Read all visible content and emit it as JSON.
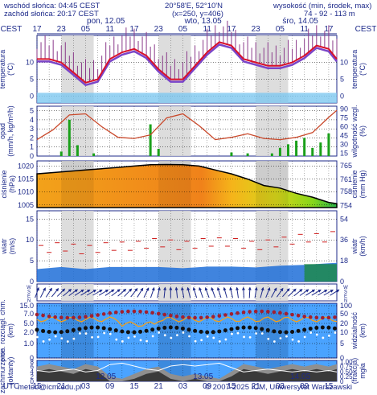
{
  "header": {
    "sunrise": "wschód słońca: 04:45 CEST",
    "sunset": "zachód słońca: 20:17 CEST",
    "coords": "20°58'E, 52°10'N",
    "grid": "(x=250, y=406)",
    "height_title": "wysokość (min, środek, max)",
    "height_values": "74 - 92 - 113 m"
  },
  "footer": {
    "email": "meteo@icm.edu.pl",
    "copyright": "© 2007-2025 ICM, Uniwersytet Warszawski"
  },
  "timeline": {
    "tz_top": "CEST",
    "tz_bottom": "UTC",
    "hours_cest_start": 17,
    "hours_utc_start": 15,
    "day_labels_top": [
      {
        "label": "pon, 12.05",
        "hour": 17
      },
      {
        "label": "wto, 13.05",
        "hour": 41
      },
      {
        "label": "śro, 14.05",
        "hour": 65
      }
    ],
    "day_labels_bottom": [
      {
        "label": "12.05",
        "hour": 17
      },
      {
        "label": "13.05",
        "hour": 41
      },
      {
        "label": "14.05",
        "hour": 65
      }
    ],
    "top_ticks": [
      "17",
      "23",
      "05",
      "11",
      "17",
      "23",
      "05",
      "11",
      "17",
      "23",
      "05",
      "11",
      "17"
    ],
    "bottom_ticks": [
      "15",
      "21",
      "03",
      "09",
      "15",
      "21",
      "03",
      "09",
      "15",
      "21",
      "03",
      "09",
      "15"
    ],
    "total_hours": 74
  },
  "panels": {
    "temp": {
      "left_label": "temperatura\n(°C)",
      "right_label": "temperatura\n(°C)",
      "ticks": [
        "10",
        "5",
        "0"
      ],
      "ticks_right": [
        "10",
        "5",
        "0"
      ],
      "range": [
        -2,
        18
      ]
    },
    "precip": {
      "left_label": "opad\n(mm/h, kg/m²/h)",
      "right_label": "wilgotność wzgl.\n(%)",
      "ticks": [
        "5",
        "4",
        "3",
        "2",
        "1",
        "0"
      ],
      "ticks_right": [
        "90",
        "75",
        "60",
        "45",
        "30",
        "15"
      ]
    },
    "pressure": {
      "left_label": "ciśnienie\n(hPa)",
      "right_label": "ciśnienie\n(mm Hg)",
      "ticks": [
        "1020",
        "1015",
        "1010",
        "1005"
      ],
      "ticks_right": [
        "765",
        "761",
        "758",
        "754"
      ],
      "range": [
        1004,
        1022
      ]
    },
    "wind": {
      "left_label": "wiatr\n(m/s)",
      "right_label": "wiatr\n(km/h)",
      "ticks": [
        "15",
        "10",
        "5",
        "0"
      ],
      "ticks_right": [
        "54",
        "36",
        "18",
        "0"
      ]
    },
    "winddir": {
      "left_label": "W\nS\nE\nN",
      "right_label": "W\nS\nE\nN"
    },
    "visib": {
      "left_label": "pion. rozciągł. chm.\n(km)",
      "right_label": "widzialność\n(km)",
      "ticks": [
        "15.0",
        "7.0",
        "5.0",
        "2.0",
        "1.0",
        "0"
      ],
      "ticks_right": [
        "100",
        "50",
        "20",
        "10",
        "5",
        "0"
      ]
    },
    "cloud": {
      "left_label": "zachmurzenie\n(oktanty)",
      "right_label": "(frakcja)\nmgła",
      "ticks": [
        "8",
        "6",
        "4",
        "2",
        "0"
      ],
      "ticks_right": [
        "1.00",
        "0.75",
        "0.50",
        "0.25",
        "0"
      ]
    }
  },
  "chart_data": {
    "type": "line",
    "x_unit": "hours since Mon 12.05 15 UTC",
    "temperature": {
      "x": [
        0,
        3,
        6,
        9,
        12,
        15,
        18,
        21,
        24,
        27,
        30,
        33,
        36,
        39,
        42,
        45,
        48,
        51,
        54,
        57,
        60,
        63,
        66,
        69,
        72,
        74
      ],
      "values": [
        11,
        11,
        10,
        7,
        4,
        5,
        11,
        13,
        14,
        12,
        8,
        5,
        5,
        9,
        13,
        16,
        15,
        11,
        10,
        9,
        9,
        10,
        12,
        15,
        14,
        11
      ]
    },
    "precipitation": {
      "x": [
        6,
        8,
        10,
        14,
        28,
        30,
        48,
        52,
        58,
        60,
        62,
        64,
        66,
        68,
        70,
        72
      ],
      "values": [
        0.5,
        4.0,
        1.2,
        0.3,
        3.5,
        0.8,
        0.4,
        0.3,
        0.3,
        0.9,
        1.3,
        1.7,
        2.0,
        0.9,
        1.5,
        2.5
      ]
    },
    "humidity": {
      "x": [
        0,
        4,
        8,
        12,
        16,
        20,
        24,
        28,
        32,
        36,
        40,
        44,
        48,
        52,
        56,
        60,
        64,
        68,
        72,
        74
      ],
      "values": [
        38,
        55,
        80,
        82,
        60,
        42,
        40,
        46,
        75,
        82,
        62,
        38,
        42,
        48,
        40,
        38,
        42,
        50,
        76,
        88
      ]
    },
    "pressure": {
      "x": [
        0,
        4,
        8,
        12,
        16,
        20,
        24,
        28,
        32,
        36,
        40,
        44,
        48,
        52,
        56,
        60,
        64,
        68,
        72,
        74
      ],
      "values": [
        1017,
        1017.5,
        1018,
        1018.5,
        1019,
        1019.5,
        1020,
        1020.5,
        1020.6,
        1020.5,
        1020,
        1018.5,
        1017,
        1015,
        1012.5,
        1011.5,
        1009.5,
        1008,
        1006,
        1005.5
      ]
    },
    "wind_mean": {
      "x": [
        0,
        6,
        12,
        18,
        24,
        30,
        36,
        42,
        48,
        54,
        60,
        66,
        72,
        74
      ],
      "values": [
        3,
        3.5,
        3,
        3.5,
        3.5,
        3.5,
        3.2,
        3.6,
        3.6,
        3.4,
        3.8,
        4,
        4.4,
        4.5
      ]
    },
    "wind_gust": {
      "x": [
        0,
        6,
        12,
        18,
        24,
        30,
        36,
        42,
        48,
        54,
        60,
        66,
        72,
        74
      ],
      "values": [
        7,
        8,
        7,
        8,
        8,
        9,
        8,
        9,
        9,
        8,
        9,
        10,
        10,
        11
      ]
    },
    "visibility_km": {
      "x": [
        0,
        8,
        16,
        24,
        32,
        40,
        48,
        56,
        64,
        72,
        74
      ],
      "values": [
        20,
        20,
        20,
        20,
        20,
        20,
        20,
        20,
        20,
        20,
        20
      ]
    },
    "cloud_octants": {
      "x": [
        0,
        3,
        6,
        9,
        12,
        15,
        18,
        21,
        24,
        27,
        30,
        33,
        36,
        39,
        42,
        45,
        48,
        51,
        54,
        57,
        60,
        63,
        66,
        69,
        72,
        74
      ],
      "values": [
        6,
        7,
        6,
        5,
        7,
        6,
        2,
        1,
        3,
        5,
        6,
        3,
        2,
        3,
        2,
        1,
        4,
        7,
        6,
        5,
        6,
        7,
        6,
        7,
        6,
        7
      ]
    }
  }
}
